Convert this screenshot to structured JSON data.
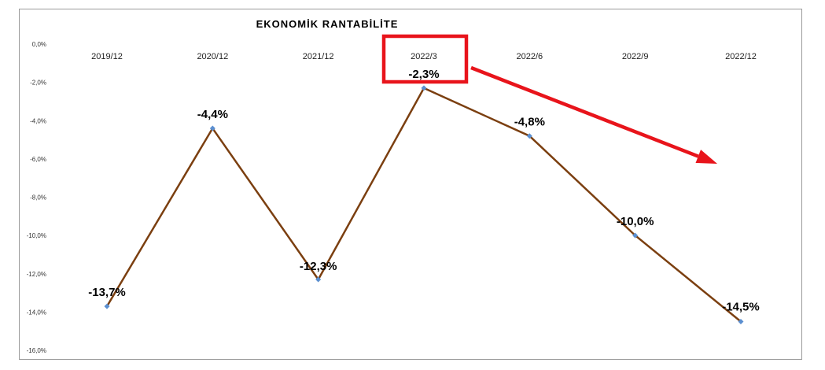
{
  "chart_data": {
    "type": "line",
    "title": "EKONOMİK RANTABİLİTE",
    "categories": [
      "2019/12",
      "2020/12",
      "2021/12",
      "2022/3",
      "2022/6",
      "2022/9",
      "2022/12"
    ],
    "series": [
      {
        "values": [
          -13.7,
          -4.4,
          -12.3,
          -2.3,
          -4.8,
          -10.0,
          -14.5
        ],
        "data_labels": [
          "-13,7%",
          "-4,4%",
          "-12,3%",
          "-2,3%",
          "-4,8%",
          "-10,0%",
          "-14,5%"
        ],
        "color": "#7b3f10",
        "marker_color": "#5b8fd0"
      }
    ],
    "ylim": [
      -16,
      0
    ],
    "yticks": [
      0,
      -2,
      -4,
      -6,
      -8,
      -10,
      -12,
      -14,
      -16
    ],
    "ytick_labels": [
      "0,0%",
      "-2,0%",
      "-4,0%",
      "-6,0%",
      "-8,0%",
      "-10,0%",
      "-12,0%",
      "-14,0%",
      "-16,0%"
    ],
    "xlabel": "",
    "ylabel": "",
    "grid": false,
    "legend": "none",
    "annotations": {
      "highlight_category": "2022/3",
      "highlight_color": "#e8141b",
      "arrow": "downward-trend",
      "arrow_color": "#e8141b"
    }
  }
}
